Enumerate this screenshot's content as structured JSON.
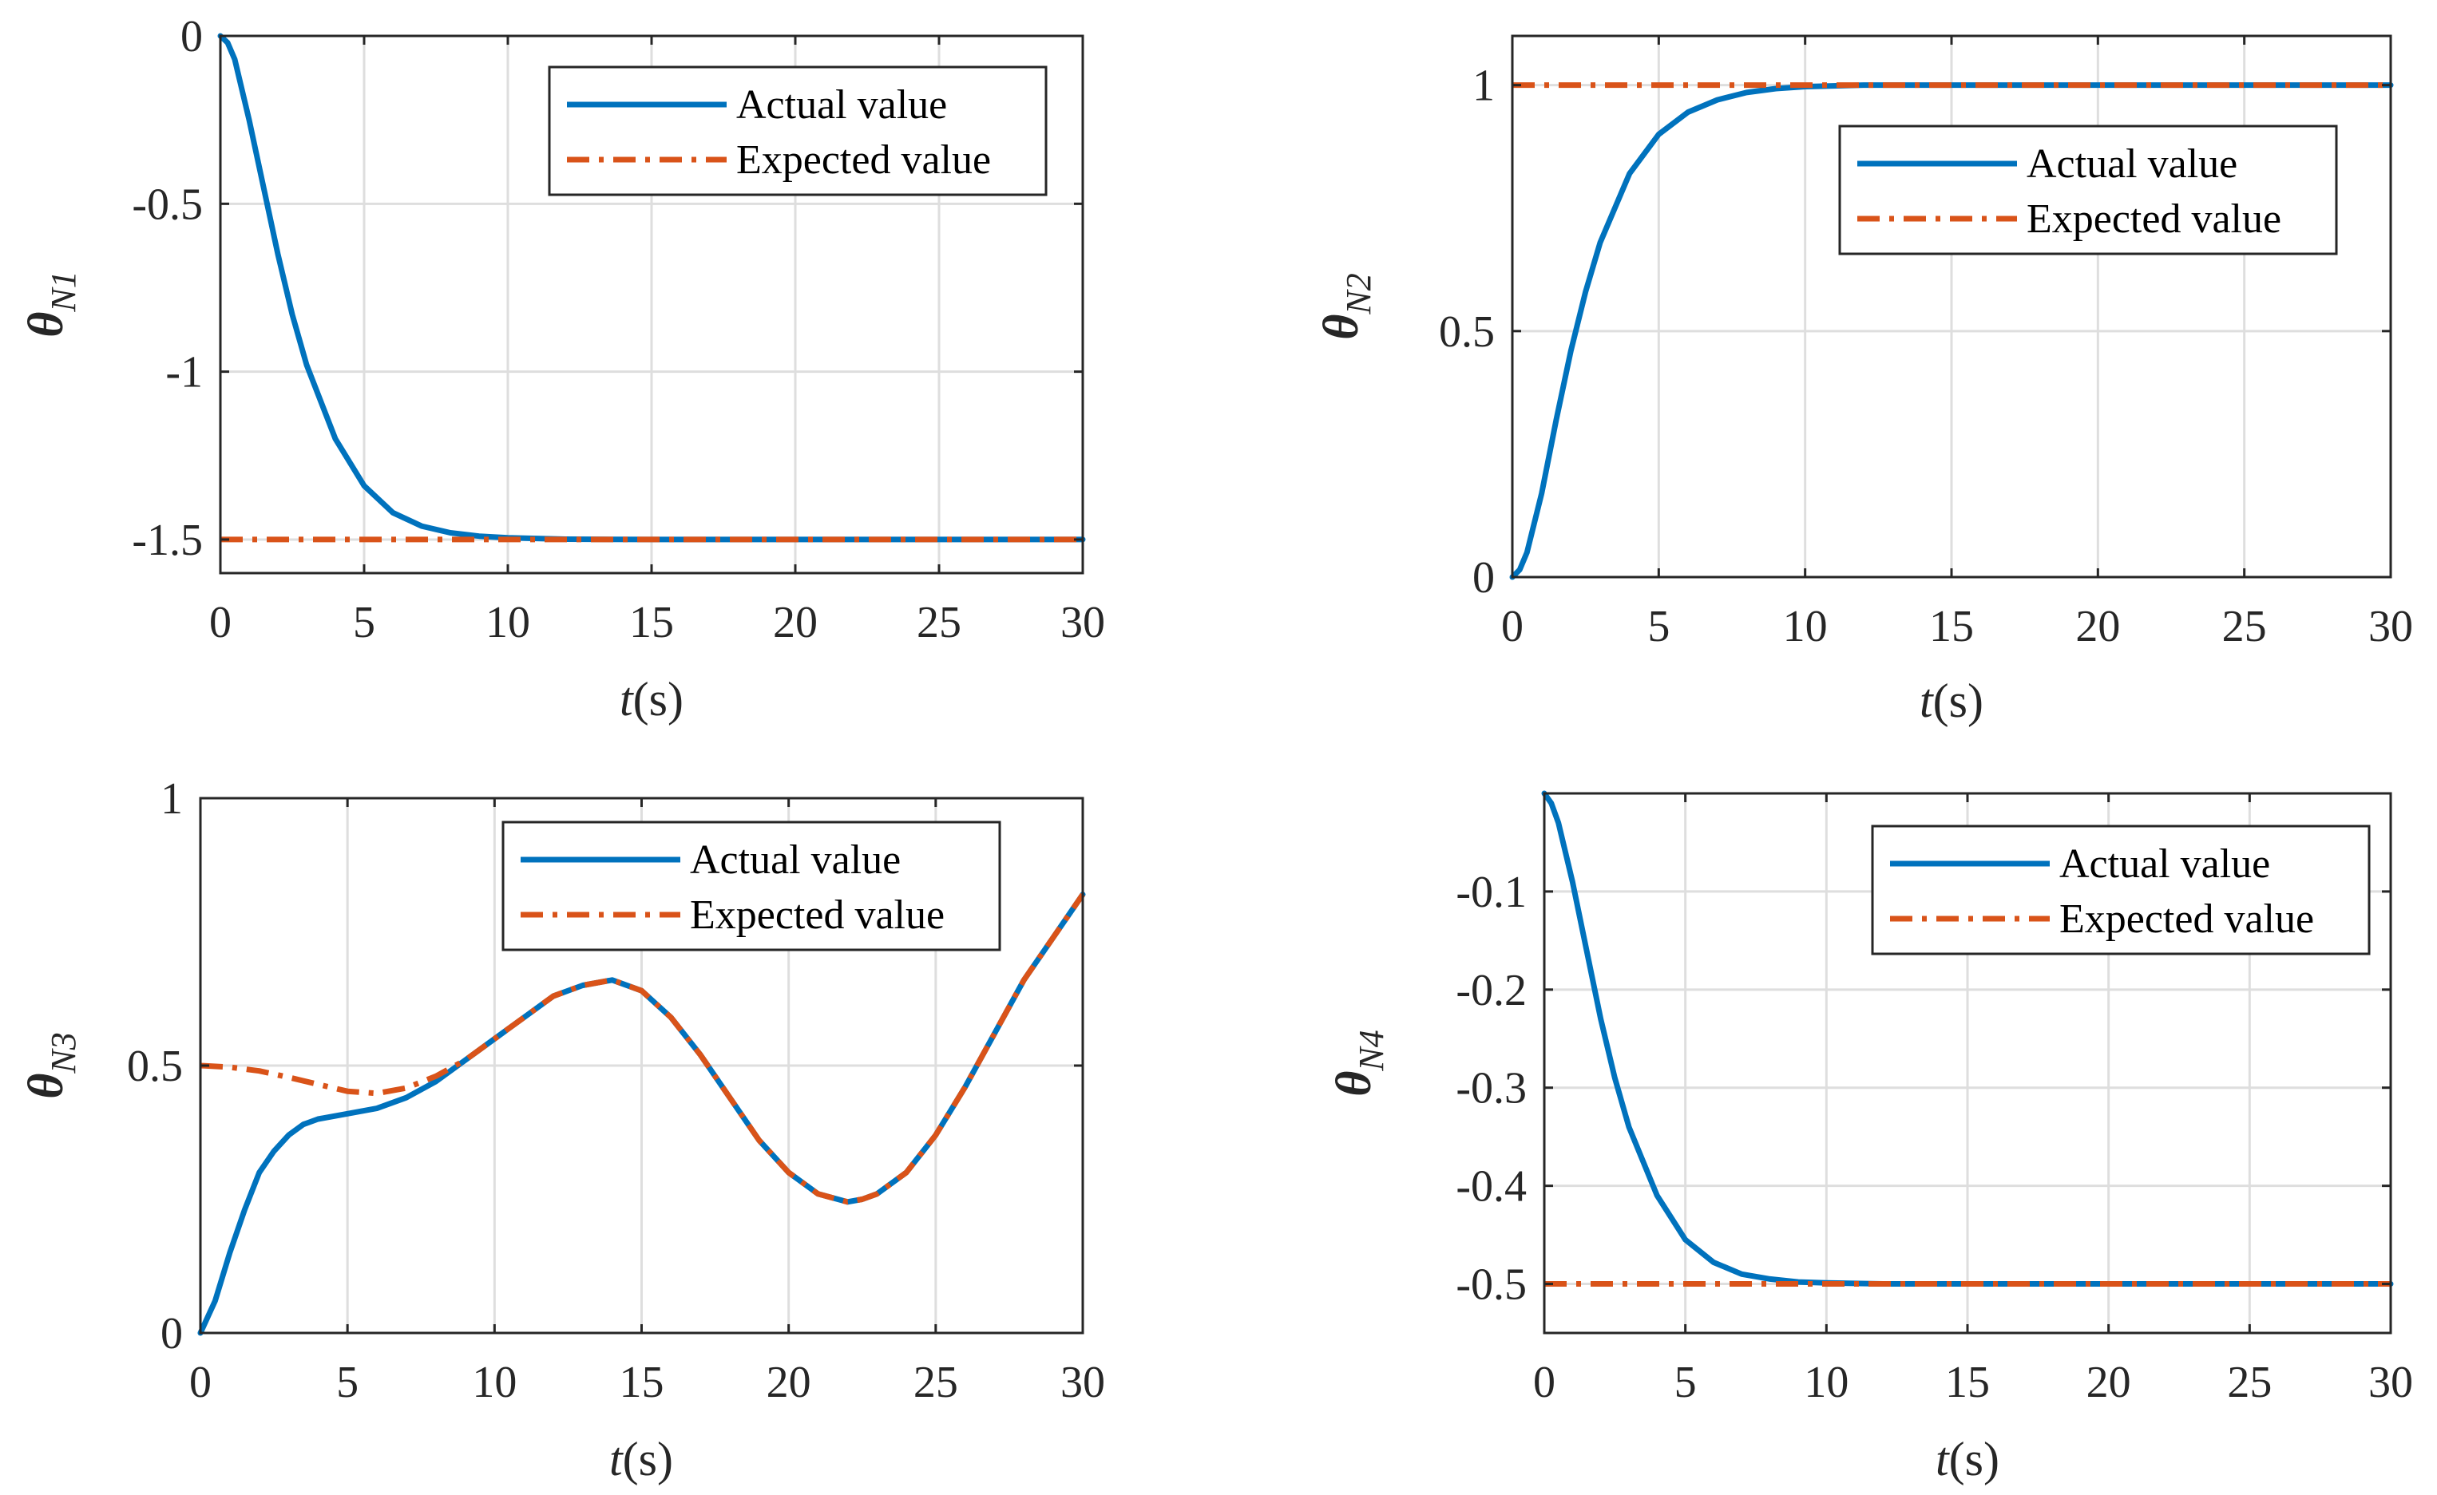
{
  "chart_data": [
    {
      "type": "line",
      "ylabel": "θ",
      "ylabel_sub": "N1",
      "xlabel_var": "t",
      "xlabel_unit": "(s)",
      "xlim": [
        0,
        30
      ],
      "ylim": [
        -1.6,
        0
      ],
      "xticks": [
        0,
        5,
        10,
        15,
        20,
        25,
        30
      ],
      "yticks": [
        0,
        -0.5,
        -1,
        -1.5
      ],
      "ytick_labels": [
        "0",
        "-0.5",
        "-1",
        "-1.5"
      ],
      "grid": true,
      "legend_position": "top-right",
      "series": [
        {
          "name": "Actual value",
          "style": "solid",
          "color": "#0072bd",
          "x": [
            0,
            0.25,
            0.5,
            1,
            1.5,
            2,
            2.5,
            3,
            4,
            5,
            6,
            7,
            8,
            9,
            10,
            12,
            15,
            20,
            25,
            30
          ],
          "y": [
            0,
            -0.02,
            -0.07,
            -0.25,
            -0.45,
            -0.65,
            -0.83,
            -0.98,
            -1.2,
            -1.34,
            -1.42,
            -1.46,
            -1.48,
            -1.49,
            -1.495,
            -1.499,
            -1.5,
            -1.5,
            -1.5,
            -1.5
          ]
        },
        {
          "name": "Expected value",
          "style": "dashdot",
          "color": "#d95319",
          "x": [
            0,
            30
          ],
          "y": [
            -1.5,
            -1.5
          ]
        }
      ]
    },
    {
      "type": "line",
      "ylabel": "θ",
      "ylabel_sub": "N2",
      "xlabel_var": "t",
      "xlabel_unit": "(s)",
      "xlim": [
        0,
        30
      ],
      "ylim": [
        0,
        1.1
      ],
      "xticks": [
        0,
        5,
        10,
        15,
        20,
        25,
        30
      ],
      "yticks": [
        0,
        0.5,
        1
      ],
      "ytick_labels": [
        "0",
        "0.5",
        "1"
      ],
      "grid": true,
      "legend_position": "right",
      "series": [
        {
          "name": "Actual value",
          "style": "solid",
          "color": "#0072bd",
          "x": [
            0,
            0.25,
            0.5,
            1,
            1.5,
            2,
            2.5,
            3,
            4,
            5,
            6,
            7,
            8,
            9,
            10,
            12,
            15,
            20,
            25,
            30
          ],
          "y": [
            0,
            0.015,
            0.05,
            0.17,
            0.32,
            0.46,
            0.58,
            0.68,
            0.82,
            0.9,
            0.945,
            0.97,
            0.985,
            0.993,
            0.997,
            1.0,
            1.0,
            1.0,
            1.0,
            1.0
          ]
        },
        {
          "name": "Expected value",
          "style": "dashdot",
          "color": "#d95319",
          "x": [
            0,
            30
          ],
          "y": [
            1,
            1
          ]
        }
      ]
    },
    {
      "type": "line",
      "ylabel": "θ",
      "ylabel_sub": "N3",
      "xlabel_var": "t",
      "xlabel_unit": "(s)",
      "xlim": [
        0,
        30
      ],
      "ylim": [
        0,
        1
      ],
      "xticks": [
        0,
        5,
        10,
        15,
        20,
        25,
        30
      ],
      "yticks": [
        0,
        0.5,
        1
      ],
      "ytick_labels": [
        "0",
        "0.5",
        "1"
      ],
      "grid": true,
      "legend_position": "top-right",
      "series": [
        {
          "name": "Actual value",
          "style": "solid",
          "color": "#0072bd",
          "x": [
            0,
            0.5,
            1,
            1.5,
            2,
            2.5,
            3,
            3.5,
            4,
            5,
            6,
            7,
            8,
            9,
            10,
            11,
            12,
            13,
            14,
            15,
            16,
            17,
            18,
            19,
            20,
            21,
            22,
            22.5,
            23,
            24,
            25,
            26,
            27,
            28,
            29,
            30
          ],
          "y": [
            0,
            0.06,
            0.15,
            0.23,
            0.3,
            0.34,
            0.37,
            0.39,
            0.4,
            0.41,
            0.42,
            0.44,
            0.47,
            0.51,
            0.55,
            0.59,
            0.63,
            0.65,
            0.66,
            0.64,
            0.59,
            0.52,
            0.44,
            0.36,
            0.3,
            0.26,
            0.245,
            0.25,
            0.26,
            0.3,
            0.37,
            0.46,
            0.56,
            0.66,
            0.74,
            0.82
          ]
        },
        {
          "name": "Expected value",
          "style": "dashdot",
          "color": "#d95319",
          "x": [
            0,
            1,
            2,
            3,
            4,
            5,
            6,
            7,
            8,
            9,
            10,
            11,
            12,
            13,
            14,
            15,
            16,
            17,
            18,
            19,
            20,
            21,
            22,
            22.5,
            23,
            24,
            25,
            26,
            27,
            28,
            29,
            30
          ],
          "y": [
            0.5,
            0.497,
            0.49,
            0.478,
            0.465,
            0.452,
            0.448,
            0.458,
            0.48,
            0.51,
            0.55,
            0.59,
            0.63,
            0.65,
            0.66,
            0.64,
            0.59,
            0.52,
            0.44,
            0.36,
            0.3,
            0.26,
            0.245,
            0.25,
            0.26,
            0.3,
            0.37,
            0.46,
            0.56,
            0.66,
            0.74,
            0.82
          ]
        }
      ]
    },
    {
      "type": "line",
      "ylabel": "θ",
      "ylabel_sub": "N4",
      "xlabel_var": "t",
      "xlabel_unit": "(s)",
      "xlim": [
        0,
        30
      ],
      "ylim": [
        -0.55,
        0
      ],
      "xticks": [
        0,
        5,
        10,
        15,
        20,
        25,
        30
      ],
      "yticks": [
        -0.1,
        -0.2,
        -0.3,
        -0.4,
        -0.5
      ],
      "ytick_labels": [
        "-0.1",
        "-0.2",
        "-0.3",
        "-0.4",
        "-0.5"
      ],
      "grid": true,
      "legend_position": "top-right",
      "series": [
        {
          "name": "Actual value",
          "style": "solid",
          "color": "#0072bd",
          "x": [
            0,
            0.25,
            0.5,
            1,
            1.5,
            2,
            2.5,
            3,
            4,
            5,
            6,
            7,
            8,
            9,
            10,
            12,
            15,
            20,
            25,
            30
          ],
          "y": [
            0,
            -0.01,
            -0.03,
            -0.09,
            -0.16,
            -0.23,
            -0.29,
            -0.34,
            -0.41,
            -0.455,
            -0.478,
            -0.49,
            -0.495,
            -0.498,
            -0.499,
            -0.5,
            -0.5,
            -0.5,
            -0.5,
            -0.5
          ]
        },
        {
          "name": "Expected value",
          "style": "dashdot",
          "color": "#d95319",
          "x": [
            0,
            30
          ],
          "y": [
            -0.5,
            -0.5
          ]
        }
      ]
    }
  ]
}
